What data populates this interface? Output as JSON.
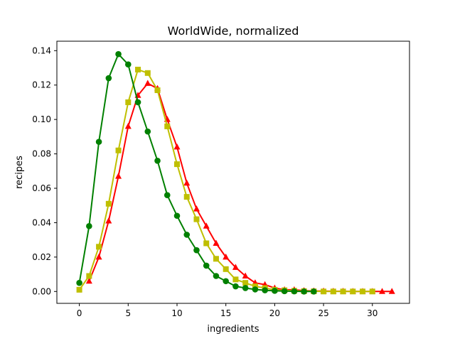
{
  "chart_data": {
    "type": "line",
    "title": "WorldWide, normalized",
    "xlabel": "ingredients",
    "ylabel": "recipes",
    "xlim": [
      -2.3,
      33.8
    ],
    "ylim": [
      -0.0069,
      0.1455
    ],
    "xticks": [
      0,
      5,
      10,
      15,
      20,
      25,
      30
    ],
    "yticks": [
      0.0,
      0.02,
      0.04,
      0.06,
      0.08,
      0.1,
      0.12,
      0.14
    ],
    "xtick_labels": [
      "0",
      "5",
      "10",
      "15",
      "20",
      "25",
      "30"
    ],
    "ytick_labels": [
      "0.00",
      "0.02",
      "0.04",
      "0.06",
      "0.08",
      "0.10",
      "0.12",
      "0.14"
    ],
    "grid": false,
    "legend": false,
    "series": [
      {
        "color": "#ff0000",
        "marker": "triangle",
        "x": [
          1,
          2,
          3,
          4,
          5,
          6,
          7,
          8,
          9,
          10,
          11,
          12,
          13,
          14,
          15,
          16,
          17,
          18,
          19,
          20,
          21,
          22,
          23,
          24,
          25,
          26,
          27,
          28,
          29,
          30,
          31,
          32
        ],
        "y": [
          0.006,
          0.02,
          0.041,
          0.067,
          0.096,
          0.114,
          0.121,
          0.118,
          0.1,
          0.084,
          0.063,
          0.048,
          0.038,
          0.028,
          0.02,
          0.014,
          0.009,
          0.005,
          0.004,
          0.002,
          0.001,
          0.001,
          0.0005,
          0.0003,
          0.0002,
          0.0001,
          0.0001,
          0.0,
          0.0,
          0.0,
          0.0,
          0.0
        ]
      },
      {
        "color": "#bfbf00",
        "marker": "square",
        "x": [
          0,
          1,
          2,
          3,
          4,
          5,
          6,
          7,
          8,
          9,
          10,
          11,
          12,
          13,
          14,
          15,
          16,
          17,
          18,
          19,
          20,
          21,
          22,
          23,
          24,
          25,
          26,
          27,
          28,
          29,
          30
        ],
        "y": [
          0.001,
          0.009,
          0.026,
          0.051,
          0.082,
          0.11,
          0.129,
          0.127,
          0.117,
          0.096,
          0.074,
          0.055,
          0.042,
          0.028,
          0.019,
          0.013,
          0.007,
          0.005,
          0.003,
          0.002,
          0.001,
          0.0007,
          0.0004,
          0.0002,
          0.0001,
          0.0,
          0.0,
          0.0,
          0.0,
          0.0,
          0.0
        ]
      },
      {
        "color": "#008000",
        "marker": "circle",
        "x": [
          0,
          1,
          2,
          3,
          4,
          5,
          6,
          7,
          8,
          9,
          10,
          11,
          12,
          13,
          14,
          15,
          16,
          17,
          18,
          19,
          20,
          21,
          22,
          23,
          24
        ],
        "y": [
          0.005,
          0.038,
          0.087,
          0.124,
          0.138,
          0.132,
          0.11,
          0.093,
          0.076,
          0.056,
          0.044,
          0.033,
          0.024,
          0.015,
          0.009,
          0.006,
          0.003,
          0.002,
          0.0012,
          0.0007,
          0.0004,
          0.0002,
          0.0001,
          0.0,
          0.0
        ]
      }
    ]
  }
}
